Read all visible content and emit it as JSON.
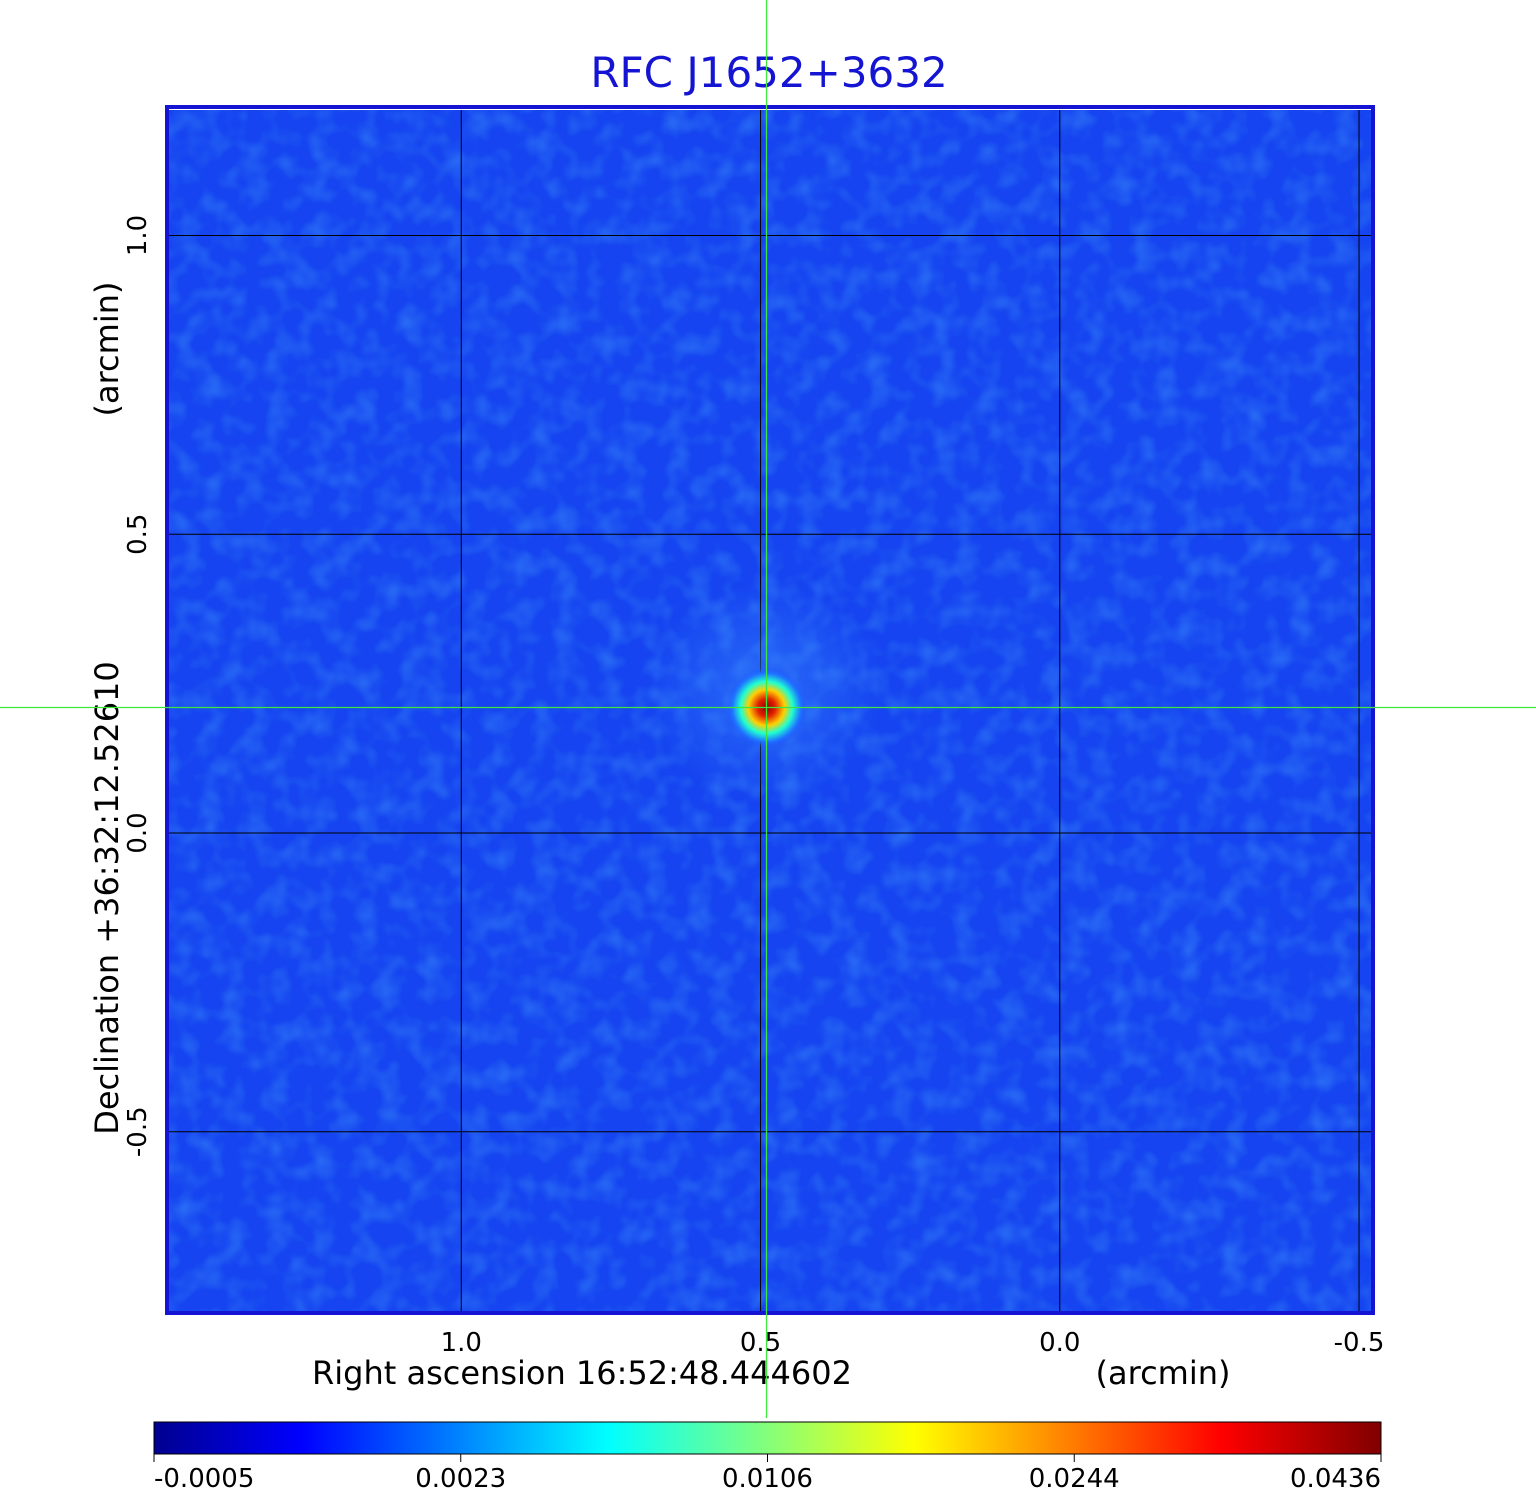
{
  "chart_data": {
    "type": "heatmap",
    "title": "RFC J1652+3632",
    "xlabel": "Right ascension  16:52:48.444602",
    "xunit": "(arcmin)",
    "ylabel": "Declination  +36:32:12.52610",
    "yunit": "(arcmin)",
    "x_ticks": [
      {
        "value": 1.0,
        "label": "1.0"
      },
      {
        "value": 0.5,
        "label": "0.5"
      },
      {
        "value": 0.0,
        "label": "0.0"
      },
      {
        "value": -0.5,
        "label": "-0.5"
      }
    ],
    "y_ticks": [
      {
        "value": 1.0,
        "label": "1.0"
      },
      {
        "value": 0.5,
        "label": "0.5"
      },
      {
        "value": 0.0,
        "label": "0.0"
      },
      {
        "value": -0.5,
        "label": "-0.5"
      }
    ],
    "xlim": [
      1.49,
      -0.52
    ],
    "ylim": [
      -0.8,
      1.21
    ],
    "grid": true,
    "colormap": "jet",
    "colorbar_ticks": [
      "-0.0005",
      "0.0023",
      "0.0106",
      "0.0244",
      "0.0436"
    ],
    "source_peak": {
      "x": 0.49,
      "y": 0.21,
      "value": 0.0436
    },
    "crosshair": {
      "x": 0.49,
      "y": 0.21,
      "color": "#3ee63e"
    },
    "frame_color": "#1414d2",
    "background_level": 0.0
  }
}
